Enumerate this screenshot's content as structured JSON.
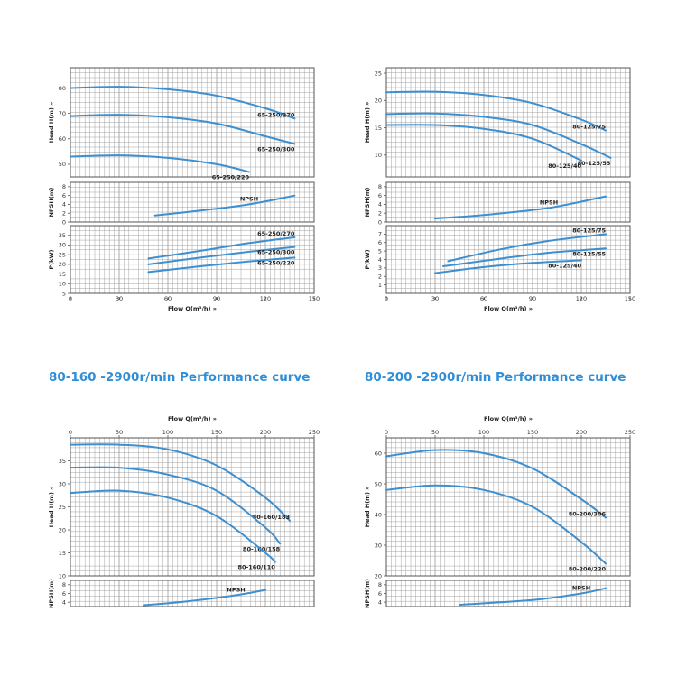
{
  "colors": {
    "curve": "#3d8fd0",
    "grid": "#999999",
    "frame": "#555555",
    "heading": "#2f8ed6",
    "background": "#ffffff"
  },
  "headings": {
    "curve_80_160": "80-160 -2900r/min Performance curve",
    "curve_80_200": "80-200 -2900r/min Performance curve"
  },
  "chart_data": [
    {
      "type": "line",
      "x_label": "Flow Q(m³/h) »",
      "x_ticks": [
        0,
        30,
        60,
        90,
        120,
        150
      ],
      "xlim": [
        0,
        150
      ],
      "panels": [
        {
          "ylabel": "Head H(m) »",
          "ylim": [
            45,
            88
          ],
          "yticks": [
            50,
            60,
            70,
            80
          ],
          "series": [
            {
              "name": "65-250/270",
              "x": [
                0,
                30,
                60,
                90,
                120,
                138
              ],
              "y": [
                80,
                80.5,
                79.5,
                77,
                72,
                68
              ]
            },
            {
              "name": "65-250/300",
              "x": [
                0,
                30,
                60,
                90,
                120,
                138
              ],
              "y": [
                69,
                69.5,
                68.5,
                66,
                61,
                58
              ]
            },
            {
              "name": "65-250/220",
              "x": [
                0,
                30,
                60,
                90,
                110
              ],
              "y": [
                53,
                53.5,
                52.5,
                50,
                47
              ]
            }
          ]
        },
        {
          "ylabel": "NPSH(m)",
          "ylim": [
            0,
            9
          ],
          "yticks": [
            0,
            2,
            4,
            6,
            8
          ],
          "series": [
            {
              "name": "NPSH",
              "x": [
                52,
                80,
                110,
                138
              ],
              "y": [
                1.5,
                2.6,
                4,
                6
              ]
            }
          ]
        },
        {
          "ylabel": "P(kW)",
          "ylim": [
            5,
            40
          ],
          "yticks": [
            5,
            10,
            15,
            20,
            25,
            30,
            35
          ],
          "series": [
            {
              "name": "65-250/270",
              "x": [
                48,
                80,
                110,
                138
              ],
              "y": [
                23,
                27,
                31,
                34
              ]
            },
            {
              "name": "65-250/300",
              "x": [
                48,
                80,
                110,
                138
              ],
              "y": [
                20,
                23.5,
                26.5,
                29
              ]
            },
            {
              "name": "65-250/220",
              "x": [
                48,
                80,
                110,
                138
              ],
              "y": [
                16,
                19,
                21.5,
                23.5
              ]
            }
          ]
        }
      ]
    },
    {
      "type": "line",
      "x_label": "Flow Q(m³/h) »",
      "x_ticks": [
        0,
        30,
        60,
        90,
        120,
        150
      ],
      "xlim": [
        0,
        150
      ],
      "panels": [
        {
          "ylabel": "Head H(m) »",
          "ylim": [
            6,
            26
          ],
          "yticks": [
            10,
            15,
            20,
            25
          ],
          "series": [
            {
              "name": "80-125/75",
              "x": [
                0,
                30,
                60,
                90,
                120,
                135
              ],
              "y": [
                21.5,
                21.6,
                21,
                19.5,
                16.5,
                14.5
              ]
            },
            {
              "name": "80-125/55",
              "x": [
                0,
                30,
                60,
                90,
                120,
                138
              ],
              "y": [
                17.5,
                17.6,
                17,
                15.5,
                12,
                9.5
              ]
            },
            {
              "name": "80-125/40",
              "x": [
                0,
                30,
                60,
                90,
                120
              ],
              "y": [
                15.5,
                15.5,
                14.8,
                13,
                9
              ]
            }
          ]
        },
        {
          "ylabel": "NPSH(m)",
          "ylim": [
            0,
            9
          ],
          "yticks": [
            0,
            2,
            4,
            6,
            8
          ],
          "series": [
            {
              "name": "NPSH",
              "x": [
                30,
                60,
                100,
                135
              ],
              "y": [
                0.8,
                1.6,
                3.2,
                5.8
              ]
            }
          ]
        },
        {
          "ylabel": "P(kW)",
          "ylim": [
            0,
            8
          ],
          "yticks": [
            1,
            2,
            3,
            4,
            5,
            6,
            7
          ],
          "series": [
            {
              "name": "80-125/75",
              "x": [
                38,
                70,
                100,
                135
              ],
              "y": [
                3.8,
                5.2,
                6.2,
                7
              ]
            },
            {
              "name": "80-125/55",
              "x": [
                35,
                70,
                100,
                135
              ],
              "y": [
                3.2,
                4.1,
                4.8,
                5.3
              ]
            },
            {
              "name": "80-125/40",
              "x": [
                30,
                60,
                90,
                120
              ],
              "y": [
                2.4,
                3.1,
                3.6,
                3.9
              ]
            }
          ]
        }
      ]
    },
    {
      "type": "line",
      "x_label": "Flow Q(m³/h) »",
      "x_ticks": [
        0,
        50,
        100,
        150,
        200,
        250
      ],
      "xlim": [
        0,
        250
      ],
      "x_axis_position": "top",
      "title": "80-160 -2900r/min Performance curve",
      "panels": [
        {
          "ylabel": "Head H(m) »",
          "ylim": [
            10,
            40
          ],
          "yticks": [
            10,
            15,
            20,
            25,
            30,
            35
          ],
          "series": [
            {
              "name": "80-160/183",
              "x": [
                0,
                50,
                100,
                150,
                200,
                225
              ],
              "y": [
                38.5,
                38.5,
                37.5,
                34,
                27,
                22
              ]
            },
            {
              "name": "80-160/158",
              "x": [
                0,
                50,
                100,
                150,
                200,
                215
              ],
              "y": [
                33.5,
                33.5,
                32,
                28.5,
                20.5,
                17
              ]
            },
            {
              "name": "80-160/110",
              "x": [
                0,
                50,
                100,
                150,
                200,
                210
              ],
              "y": [
                28,
                28.5,
                27,
                23,
                15,
                13
              ]
            }
          ]
        },
        {
          "ylabel": "NPSH(m)",
          "ylim": [
            3,
            9
          ],
          "yticks": [
            4,
            6,
            8
          ],
          "series": [
            {
              "name": "NPSH",
              "x": [
                75,
                120,
                170,
                200
              ],
              "y": [
                3.3,
                4.2,
                5.6,
                6.8
              ]
            }
          ]
        }
      ]
    },
    {
      "type": "line",
      "x_label": "Flow Q(m³/h) »",
      "x_ticks": [
        0,
        50,
        100,
        150,
        200,
        250
      ],
      "xlim": [
        0,
        250
      ],
      "x_axis_position": "top",
      "title": "80-200 -2900r/min Performance curve",
      "panels": [
        {
          "ylabel": "Head H(m) »",
          "ylim": [
            20,
            65
          ],
          "yticks": [
            20,
            30,
            40,
            50,
            60
          ],
          "series": [
            {
              "name": "80-200/306",
              "x": [
                0,
                50,
                100,
                150,
                200,
                225
              ],
              "y": [
                59,
                61,
                60,
                55,
                45,
                39
              ]
            },
            {
              "name": "80-200/220",
              "x": [
                0,
                50,
                100,
                150,
                200,
                225
              ],
              "y": [
                48,
                49.5,
                48,
                42.5,
                31,
                24
              ]
            }
          ]
        },
        {
          "ylabel": "NPSH(m)",
          "ylim": [
            3,
            9
          ],
          "yticks": [
            4,
            6,
            8
          ],
          "series": [
            {
              "name": "NPSH",
              "x": [
                75,
                150,
                200,
                225
              ],
              "y": [
                3.4,
                4.5,
                6,
                7.2
              ]
            }
          ]
        }
      ]
    }
  ]
}
